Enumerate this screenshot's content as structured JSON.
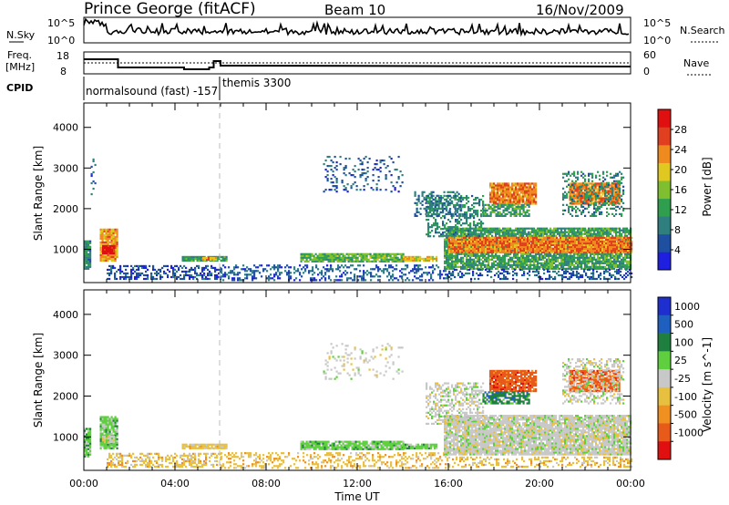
{
  "header": {
    "station": "Prince George (fitACF)",
    "beam": "Beam 10",
    "date": "16/Nov/2009"
  },
  "nsky_panel": {
    "left_label": "N.Sky",
    "left_ticks": [
      "10^5",
      "10^0"
    ],
    "right_label": "N.Search",
    "right_ticks": [
      "10^5",
      "10^0"
    ]
  },
  "freq_panel": {
    "left_label_1": "Freq.",
    "left_label_2": "[MHz]",
    "left_ticks": [
      "18",
      "8"
    ],
    "right_label": "Nave",
    "right_ticks": [
      "60",
      "0"
    ]
  },
  "cpid": {
    "label": "CPID",
    "modes": [
      {
        "name": "normalsound (fast) -157",
        "start_hour": 0
      },
      {
        "name": "themis 3300",
        "start_hour": 6
      }
    ]
  },
  "colors": {
    "power_scale": [
      "#1f1fdf",
      "#1f4fa0",
      "#2f7f7f",
      "#2f9f4f",
      "#7fbf2f",
      "#dfc81f",
      "#ef8a1f",
      "#e0401f",
      "#e01010"
    ],
    "velocity_scale": [
      "#1f2fcf",
      "#1f5fbf",
      "#1f7f3f",
      "#5fcf3f",
      "#c8c8c8",
      "#e8c040",
      "#ef9020",
      "#e85a1a",
      "#e01010"
    ]
  },
  "chart_data": [
    {
      "type": "heatmap",
      "name": "power",
      "xlabel": "",
      "ylabel": "Slant Range [km]",
      "xlim": [
        0,
        24
      ],
      "ylim": [
        180,
        4600
      ],
      "yticks": [
        1000,
        2000,
        3000,
        4000
      ],
      "colorbar": {
        "title": "Power [dB]",
        "labels": [
          "28",
          "24",
          "20",
          "16",
          "12",
          "8",
          "4"
        ],
        "range": [
          0,
          32
        ]
      },
      "regions": [
        {
          "t0": 0.0,
          "t1": 0.3,
          "r0": 500,
          "r1": 1200,
          "val": 10,
          "dens": 0.95
        },
        {
          "t0": 0.7,
          "t1": 1.5,
          "r0": 700,
          "r1": 1500,
          "val": 22,
          "dens": 0.95
        },
        {
          "t0": 0.8,
          "t1": 1.3,
          "r0": 880,
          "r1": 1100,
          "val": 30,
          "dens": 1.0
        },
        {
          "t0": 0.3,
          "t1": 0.5,
          "r0": 2200,
          "r1": 3200,
          "val": 6,
          "dens": 0.25
        },
        {
          "t0": 1.0,
          "t1": 6.0,
          "r0": 250,
          "r1": 600,
          "val": 5,
          "dens": 0.45
        },
        {
          "t0": 4.3,
          "t1": 6.3,
          "r0": 700,
          "r1": 820,
          "val": 12,
          "dens": 0.9
        },
        {
          "t0": 5.2,
          "t1": 5.8,
          "r0": 720,
          "r1": 800,
          "val": 22,
          "dens": 0.9
        },
        {
          "t0": 6.0,
          "t1": 16.0,
          "r0": 220,
          "r1": 620,
          "val": 6,
          "dens": 0.35
        },
        {
          "t0": 9.5,
          "t1": 14.0,
          "r0": 680,
          "r1": 880,
          "val": 14,
          "dens": 0.9
        },
        {
          "t0": 14.0,
          "t1": 15.5,
          "r0": 700,
          "r1": 800,
          "val": 20,
          "dens": 0.9
        },
        {
          "t0": 15.8,
          "t1": 24.0,
          "r0": 500,
          "r1": 1500,
          "val": 12,
          "dens": 0.85
        },
        {
          "t0": 16.0,
          "t1": 24.0,
          "r0": 900,
          "r1": 1300,
          "val": 24,
          "dens": 0.95
        },
        {
          "t0": 15.0,
          "t1": 17.5,
          "r0": 1300,
          "r1": 2300,
          "val": 10,
          "dens": 0.4
        },
        {
          "t0": 17.8,
          "t1": 19.8,
          "r0": 2100,
          "r1": 2600,
          "val": 24,
          "dens": 0.9
        },
        {
          "t0": 17.5,
          "t1": 19.5,
          "r0": 1800,
          "r1": 2100,
          "val": 12,
          "dens": 0.7
        },
        {
          "t0": 21.3,
          "t1": 23.5,
          "r0": 2100,
          "r1": 2600,
          "val": 24,
          "dens": 0.9
        },
        {
          "t0": 21.0,
          "t1": 23.7,
          "r0": 1800,
          "r1": 2900,
          "val": 10,
          "dens": 0.35
        },
        {
          "t0": 10.5,
          "t1": 14.0,
          "r0": 2400,
          "r1": 3300,
          "val": 6,
          "dens": 0.15
        },
        {
          "t0": 14.5,
          "t1": 16.5,
          "r0": 1800,
          "r1": 2400,
          "val": 8,
          "dens": 0.35
        },
        {
          "t0": 16.0,
          "t1": 24.0,
          "r0": 250,
          "r1": 500,
          "val": 6,
          "dens": 0.35
        }
      ]
    },
    {
      "type": "heatmap",
      "name": "velocity",
      "xlabel": "Time UT",
      "ylabel": "Slant Range [km]",
      "xlim": [
        0,
        24
      ],
      "ylim": [
        180,
        4600
      ],
      "xticks": [
        "00:00",
        "04:00",
        "08:00",
        "12:00",
        "16:00",
        "20:00",
        "00:00"
      ],
      "yticks": [
        1000,
        2000,
        3000,
        4000
      ],
      "colorbar": {
        "title": "Velocity [m s^-1]",
        "labels": [
          "1000",
          "500",
          "100",
          "25",
          "-25",
          "-100",
          "-500",
          "-1000"
        ]
      },
      "regions": [
        {
          "t0": 0.0,
          "t1": 0.3,
          "r0": 500,
          "r1": 1200,
          "cat": 3,
          "dens": 0.9
        },
        {
          "t0": 0.7,
          "t1": 1.5,
          "r0": 700,
          "r1": 1500,
          "cat": 3,
          "dens": 0.9
        },
        {
          "t0": 0.8,
          "t1": 1.3,
          "r0": 850,
          "r1": 1000,
          "cat": 4,
          "dens": 0.9
        },
        {
          "t0": 1.0,
          "t1": 6.0,
          "r0": 250,
          "r1": 600,
          "cat": 5,
          "dens": 0.45
        },
        {
          "t0": 4.3,
          "t1": 6.3,
          "r0": 700,
          "r1": 820,
          "cat": 5,
          "dens": 0.9
        },
        {
          "t0": 6.0,
          "t1": 16.0,
          "r0": 220,
          "r1": 620,
          "cat": 5,
          "dens": 0.35
        },
        {
          "t0": 9.5,
          "t1": 14.0,
          "r0": 680,
          "r1": 880,
          "cat": 3,
          "dens": 0.9
        },
        {
          "t0": 14.0,
          "t1": 15.5,
          "r0": 700,
          "r1": 800,
          "cat": 3,
          "dens": 0.9
        },
        {
          "t0": 15.8,
          "t1": 24.0,
          "r0": 550,
          "r1": 1500,
          "cat": 4,
          "dens": 0.9
        },
        {
          "t0": 15.0,
          "t1": 17.5,
          "r0": 1300,
          "r1": 2300,
          "cat": 4,
          "dens": 0.45
        },
        {
          "t0": 17.8,
          "t1": 19.8,
          "r0": 2100,
          "r1": 2600,
          "cat": 7,
          "dens": 0.9
        },
        {
          "t0": 17.5,
          "t1": 19.5,
          "r0": 1800,
          "r1": 2100,
          "cat": 2,
          "dens": 0.7
        },
        {
          "t0": 21.3,
          "t1": 23.5,
          "r0": 2100,
          "r1": 2600,
          "cat": 7,
          "dens": 0.9
        },
        {
          "t0": 21.0,
          "t1": 23.7,
          "r0": 1800,
          "r1": 2900,
          "cat": 4,
          "dens": 0.35
        },
        {
          "t0": 10.5,
          "t1": 14.0,
          "r0": 2400,
          "r1": 3300,
          "cat": 4,
          "dens": 0.15
        },
        {
          "t0": 16.0,
          "t1": 24.0,
          "r0": 250,
          "r1": 500,
          "cat": 5,
          "dens": 0.35
        }
      ]
    }
  ]
}
